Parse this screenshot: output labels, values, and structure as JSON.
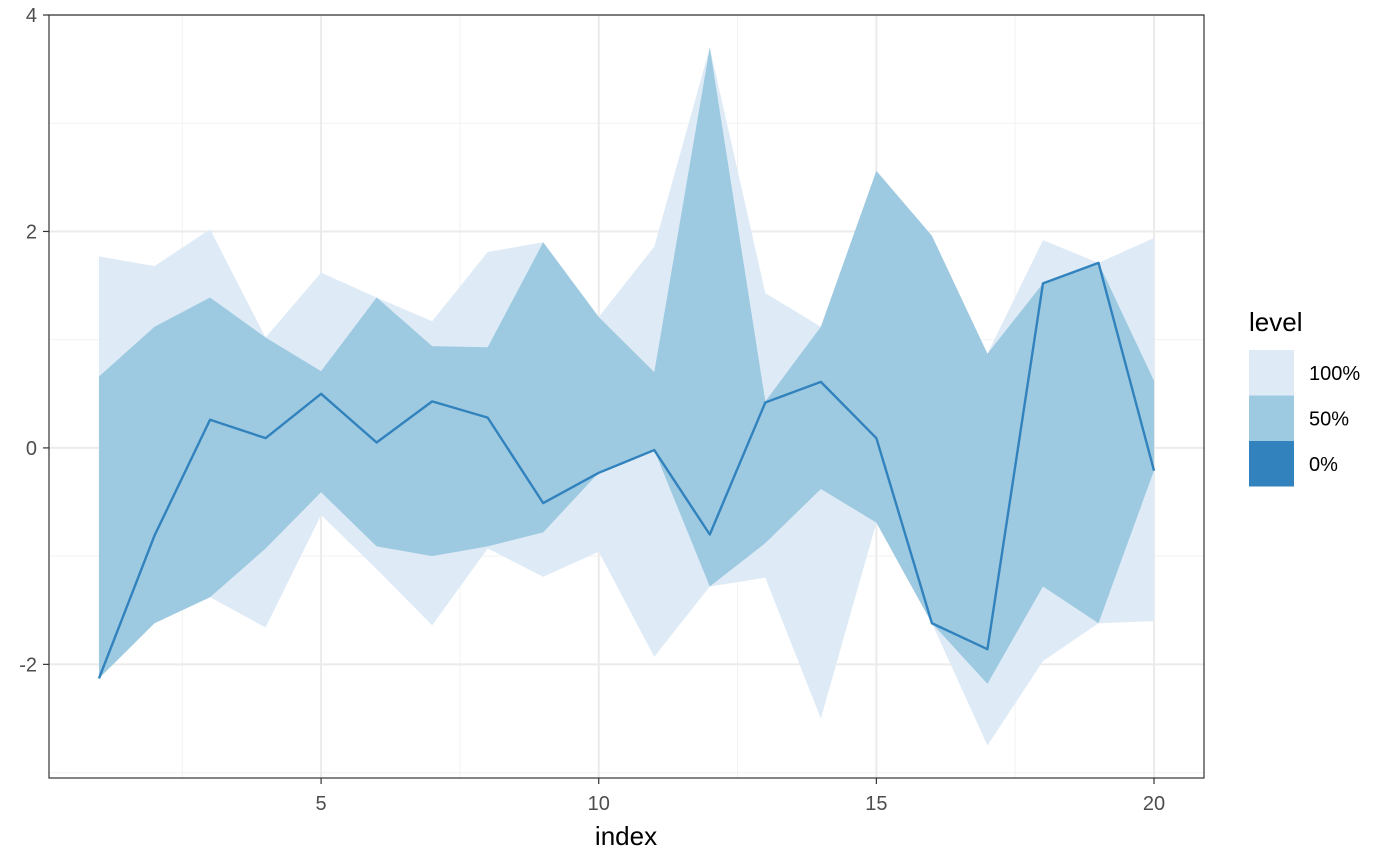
{
  "chart_data": {
    "type": "area",
    "xlabel": "index",
    "ylabel": "",
    "xlim": [
      0.1,
      20.9
    ],
    "ylim": [
      -3.05,
      4.0
    ],
    "x_ticks": [
      5,
      10,
      15,
      20
    ],
    "x_tick_labels": [
      "5",
      "10",
      "15",
      "20"
    ],
    "y_ticks": [
      -2,
      0,
      2,
      4
    ],
    "y_tick_labels": [
      "-2",
      "0",
      "2",
      "4"
    ],
    "grid": true,
    "x": [
      1,
      2,
      3,
      4,
      5,
      6,
      7,
      8,
      9,
      10,
      11,
      12,
      13,
      14,
      15,
      16,
      17,
      18,
      19,
      20
    ],
    "line": {
      "level": "0%",
      "values": [
        -2.13,
        -0.81,
        0.26,
        0.09,
        0.5,
        0.05,
        0.43,
        0.28,
        -0.51,
        -0.23,
        -0.02,
        -0.8,
        0.42,
        0.61,
        0.09,
        -1.62,
        -1.86,
        1.52,
        1.71,
        -0.21
      ]
    },
    "bands": [
      {
        "level": "100%",
        "lower": [
          -2.13,
          -1.62,
          -1.38,
          -1.66,
          -0.62,
          -1.12,
          -1.64,
          -0.93,
          -1.19,
          -0.96,
          -1.93,
          -1.28,
          -1.2,
          -2.5,
          -0.69,
          -1.62,
          -2.75,
          -1.97,
          -1.62,
          -1.6
        ],
        "upper": [
          1.77,
          1.68,
          2.02,
          1.02,
          1.62,
          1.39,
          1.17,
          1.81,
          1.9,
          1.21,
          1.86,
          3.7,
          1.43,
          1.12,
          2.56,
          1.96,
          0.87,
          1.92,
          1.71,
          1.94
        ]
      },
      {
        "level": "50%",
        "lower": [
          -2.13,
          -1.62,
          -1.38,
          -0.93,
          -0.41,
          -0.91,
          -1.0,
          -0.91,
          -0.78,
          -0.23,
          -0.02,
          -1.28,
          -0.88,
          -0.38,
          -0.69,
          -1.62,
          -2.18,
          -1.28,
          -1.62,
          -0.21
        ],
        "upper": [
          0.66,
          1.12,
          1.39,
          1.02,
          0.71,
          1.39,
          0.94,
          0.93,
          1.9,
          1.21,
          0.7,
          3.7,
          0.43,
          1.12,
          2.56,
          1.96,
          0.87,
          1.52,
          1.71,
          0.62
        ]
      }
    ],
    "legend": {
      "title": "level",
      "placement": "right",
      "items": [
        {
          "label": "100%",
          "color": "#deebf7"
        },
        {
          "label": "50%",
          "color": "#9ecae1"
        },
        {
          "label": "0%",
          "color": "#3182bd"
        }
      ]
    }
  },
  "colors": {
    "band_100": "#deebf7",
    "band_50": "#9ecae1",
    "line_0": "#3182bd",
    "grid_major": "#ebebeb",
    "grid_minor": "#f2f2f2",
    "panel_border": "#333333"
  }
}
